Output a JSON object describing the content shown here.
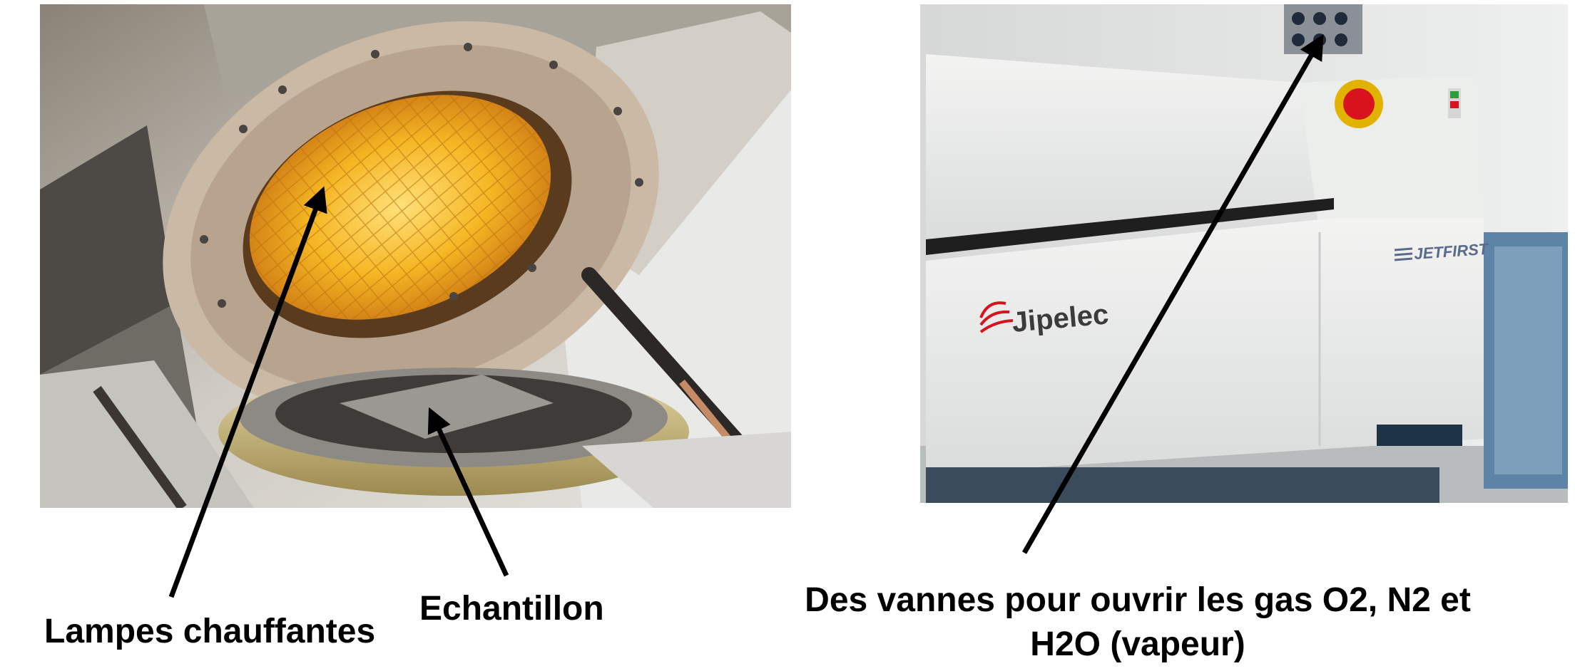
{
  "photos": {
    "left": {
      "icon": "rtp-furnace-chamber-photo"
    },
    "right": {
      "icon": "rtp-furnace-cabinet-photo",
      "brand_logo_text": "Jipelec",
      "model_logo_text": "JETFIRST"
    }
  },
  "captions": {
    "lamps": "Lampes chauffantes",
    "sample": "Echantillon",
    "valves_line1": "Des vannes pour ouvrir les gas O2, N2 et",
    "valves_line2": "H2O (vapeur)"
  },
  "colors": {
    "lamp_glow": "#f5b623",
    "metal": "#b9b4ad",
    "cabinet": "#e4e8e9",
    "emergency_stop": "#d7141d",
    "arrow": "#000000"
  }
}
